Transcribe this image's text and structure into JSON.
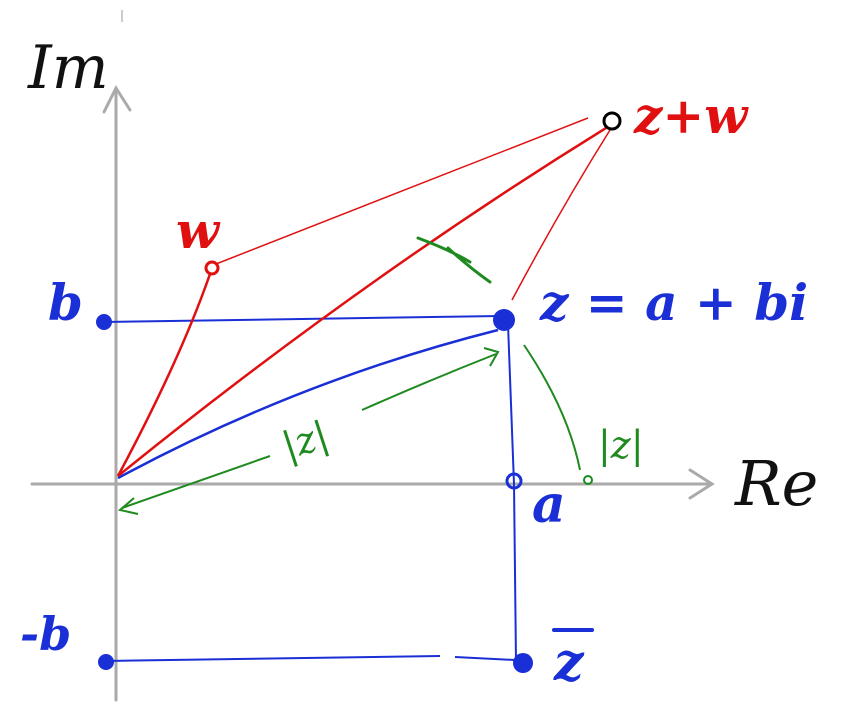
{
  "labels": {
    "im_axis": "Im",
    "re_axis": "Re",
    "w": "w",
    "z_plus_w": "z+w",
    "z_def": "z = a + bi",
    "b": "b",
    "minus_b": "-b",
    "a": "a",
    "z_conj": "z",
    "abs_z_diag": "|z|",
    "abs_z_axis": "|z|"
  },
  "colors": {
    "axis": "#aaaaaa",
    "axis_label": "#111111",
    "blue": "#1a2fd6",
    "red": "#e01010",
    "green": "#1f8a1f",
    "black": "#000000"
  }
}
